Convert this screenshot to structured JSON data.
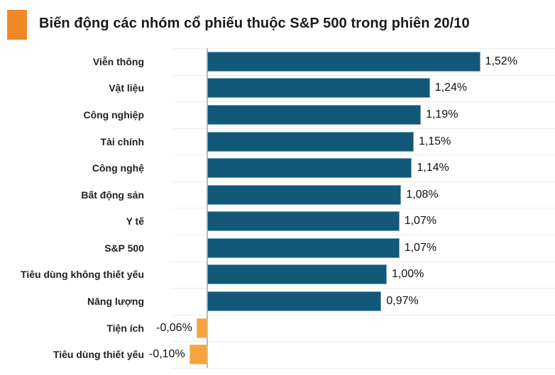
{
  "header": {
    "title": "Biến động các nhóm cổ phiếu thuộc S&P 500 trong phiên 20/10",
    "marker_color": "#F0882A"
  },
  "chart_data": {
    "type": "bar",
    "orientation": "horizontal",
    "title": "Biến động các nhóm cổ phiếu thuộc S&P 500 trong phiên 20/10",
    "categories": [
      "Viễn thông",
      "Vật liệu",
      "Công nghiệp",
      "Tài chính",
      "Công nghệ",
      "Bất động sản",
      "Y tế",
      "S&P 500",
      "Tiêu dùng không thiết yếu",
      "Năng lượng",
      "Tiện ích",
      "Tiêu dùng thiết yếu"
    ],
    "values": [
      1.52,
      1.24,
      1.19,
      1.15,
      1.14,
      1.08,
      1.07,
      1.07,
      1.0,
      0.97,
      -0.06,
      -0.1
    ],
    "value_labels": [
      "1,52%",
      "1,24%",
      "1,19%",
      "1,15%",
      "1,14%",
      "1,08%",
      "1,07%",
      "1,07%",
      "1,00%",
      "0,97%",
      "-0,06%",
      "-0,10%"
    ],
    "unit": "%",
    "xlim": [
      -0.2,
      1.94
    ],
    "grid": "horizontal-row-separators",
    "legend": "none",
    "positive_color": "#125878",
    "negative_color": "#F8A33C",
    "axis_color": "#B3BAC2",
    "gridline_color": "#EFEFEF",
    "label_color": "#1F1F1F",
    "value_color": "#111111"
  }
}
